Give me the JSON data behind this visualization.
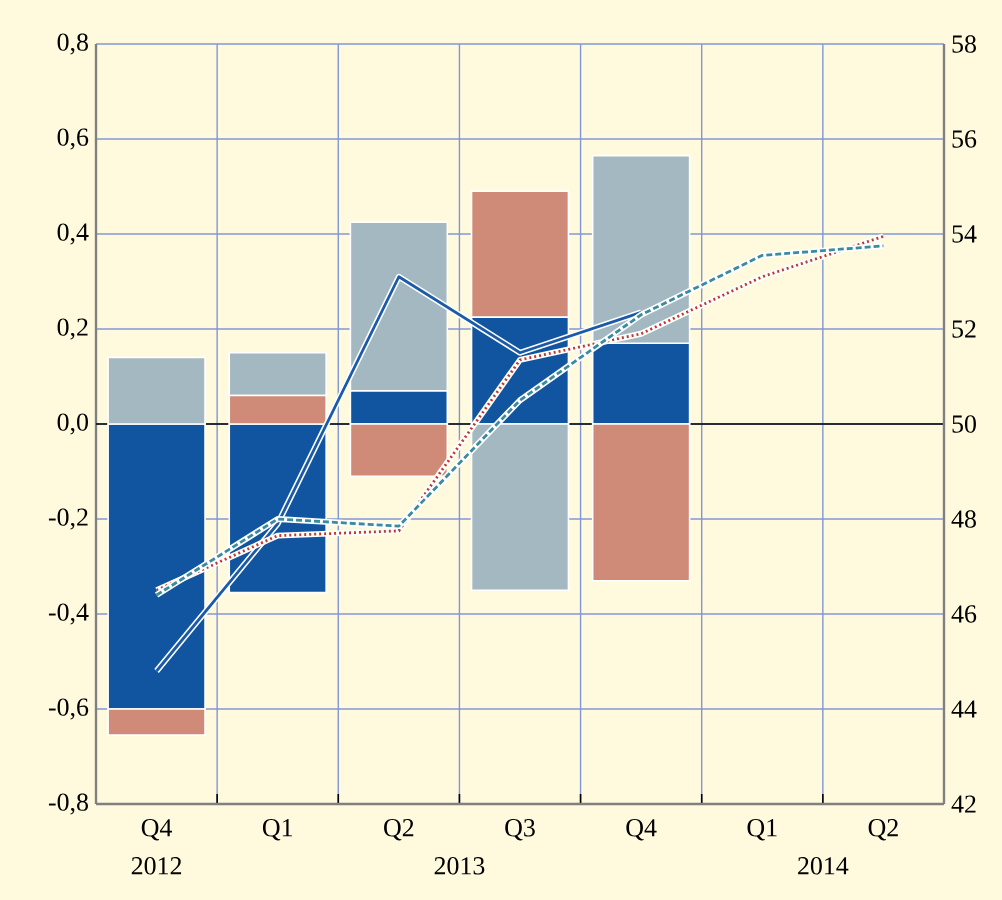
{
  "chart_data": {
    "type": "bar",
    "categories": [
      "Q4",
      "Q1",
      "Q2",
      "Q3",
      "Q4",
      "Q1",
      "Q2"
    ],
    "series": [
      {
        "color": "#1155a0",
        "values": [
          -0.6,
          -0.355,
          0.07,
          0.225,
          0.17,
          null,
          null
        ],
        "base": [
          0,
          0,
          0,
          0,
          0,
          null,
          null
        ]
      },
      {
        "color": "#a3b8c0",
        "values": [
          0.14,
          0.09,
          0.355,
          -0.35,
          0.395,
          null,
          null
        ],
        "base": [
          0,
          0.06,
          0.07,
          0,
          0.17,
          null,
          null
        ]
      },
      {
        "color": "#cf8a78",
        "values": [
          -0.055,
          0.06,
          -0.11,
          0.265,
          -0.33,
          null,
          null
        ],
        "base": [
          -0.6,
          0,
          0,
          0.225,
          0,
          null,
          null
        ]
      },
      {
        "type": "line",
        "axis": "y2",
        "color": "#1a5aa8",
        "line_style": "solid",
        "values": [
          44.8,
          47.9,
          53.1,
          51.5,
          52.35,
          null,
          null
        ]
      },
      {
        "type": "line",
        "axis": "y2",
        "color": "#c0392b",
        "line_style": "dotted",
        "values": [
          46.5,
          47.65,
          47.75,
          51.35,
          51.9,
          53.1,
          53.95
        ]
      },
      {
        "type": "line",
        "axis": "y2",
        "color": "#3a8aa0",
        "line_style": "dashed",
        "values": [
          46.4,
          48.0,
          47.85,
          50.5,
          52.3,
          53.55,
          53.75
        ]
      }
    ],
    "ylim": [
      -0.8,
      0.8
    ],
    "yticks": [
      {
        "value": -0.8,
        "label": "-0,8"
      },
      {
        "value": -0.6,
        "label": "-0,6"
      },
      {
        "value": -0.4,
        "label": "-0,4"
      },
      {
        "value": -0.2,
        "label": "-0,2"
      },
      {
        "value": 0,
        "label": "0,0"
      },
      {
        "value": 0.2,
        "label": "0,2"
      },
      {
        "value": 0.4,
        "label": "0,4"
      },
      {
        "value": 0.6,
        "label": "0,6"
      },
      {
        "value": 0.8,
        "label": "0,8"
      }
    ],
    "y2lim": [
      42,
      58
    ],
    "y2ticks": [
      42,
      44,
      46,
      48,
      50,
      52,
      54,
      56,
      58
    ],
    "ref_lines": [
      {
        "axis": "y",
        "value": 0,
        "color": "#000000"
      }
    ],
    "annotations": [
      "2012",
      "2013",
      "2014"
    ],
    "grid": true
  }
}
